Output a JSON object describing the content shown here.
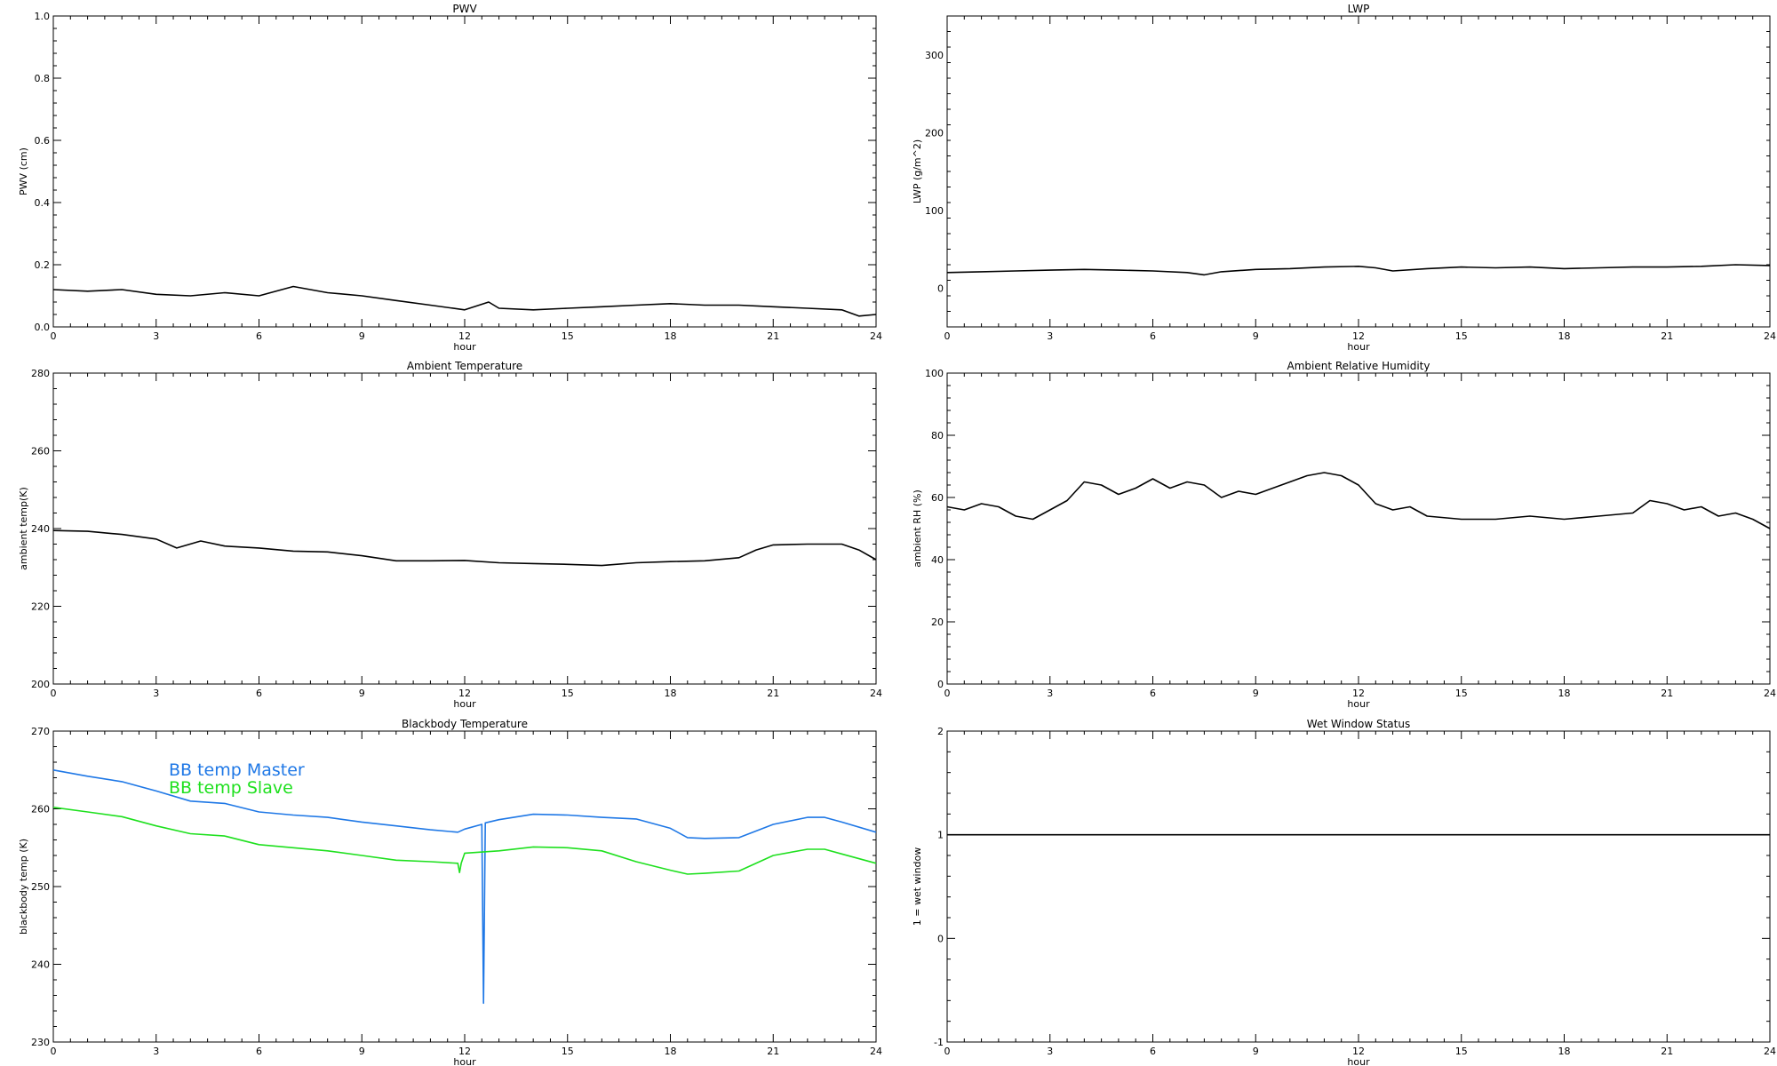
{
  "chart_data": [
    {
      "type": "line",
      "title": "PWV",
      "xlabel": "hour",
      "ylabel": "PWV (cm)",
      "xlim": [
        0,
        24
      ],
      "ylim": [
        0.0,
        1.0
      ],
      "xticks": [
        0,
        3,
        6,
        9,
        12,
        15,
        18,
        21,
        24
      ],
      "yticks": [
        0.0,
        0.2,
        0.4,
        0.6,
        0.8,
        1.0
      ],
      "ytick_labels": [
        "0.0",
        "0.2",
        "0.4",
        "0.6",
        "0.8",
        "1.0"
      ],
      "series": [
        {
          "color": "#000000",
          "x": [
            0,
            1,
            2,
            3,
            4,
            5,
            6,
            7,
            8,
            9,
            10,
            11,
            12,
            12.7,
            13,
            14,
            15,
            16,
            17,
            18,
            19,
            20,
            21,
            22,
            23,
            23.5,
            24
          ],
          "y": [
            0.12,
            0.115,
            0.12,
            0.105,
            0.1,
            0.11,
            0.1,
            0.13,
            0.11,
            0.1,
            0.085,
            0.07,
            0.055,
            0.08,
            0.06,
            0.055,
            0.06,
            0.065,
            0.07,
            0.075,
            0.07,
            0.07,
            0.065,
            0.06,
            0.055,
            0.035,
            0.04
          ]
        }
      ]
    },
    {
      "type": "line",
      "title": "LWP",
      "xlabel": "hour",
      "ylabel": "LWP (g/m^2)",
      "xlim": [
        0,
        24
      ],
      "ylim": [
        -50,
        350
      ],
      "xticks": [
        0,
        3,
        6,
        9,
        12,
        15,
        18,
        21,
        24
      ],
      "yticks": [
        0,
        100,
        200,
        300
      ],
      "ytick_labels": [
        "0",
        "100",
        "200",
        "300"
      ],
      "series": [
        {
          "color": "#000000",
          "x": [
            0,
            1,
            2,
            3,
            4,
            5,
            6,
            7,
            7.5,
            8,
            9,
            10,
            11,
            12,
            12.5,
            13,
            14,
            15,
            16,
            17,
            18,
            19,
            20,
            21,
            22,
            23,
            24
          ],
          "y": [
            20,
            21,
            22,
            23,
            24,
            23,
            22,
            20,
            17,
            21,
            24,
            25,
            27,
            28,
            26,
            22,
            25,
            27,
            26,
            27,
            25,
            26,
            27,
            27,
            28,
            30,
            29
          ]
        }
      ]
    },
    {
      "type": "line",
      "title": "Ambient Temperature",
      "xlabel": "hour",
      "ylabel": "ambient temp(K)",
      "xlim": [
        0,
        24
      ],
      "ylim": [
        200,
        280
      ],
      "xticks": [
        0,
        3,
        6,
        9,
        12,
        15,
        18,
        21,
        24
      ],
      "yticks": [
        200,
        220,
        240,
        260,
        280
      ],
      "ytick_labels": [
        "200",
        "220",
        "240",
        "260",
        "280"
      ],
      "series": [
        {
          "color": "#000000",
          "x": [
            0,
            1,
            2,
            3,
            3.6,
            4.3,
            5,
            6,
            7,
            8,
            9,
            10,
            11,
            12,
            13,
            14,
            15,
            16,
            17,
            18,
            19,
            20,
            20.5,
            21,
            22,
            23,
            23.5,
            24
          ],
          "y": [
            239.5,
            239.3,
            238.5,
            237.3,
            235.0,
            236.8,
            235.5,
            235.0,
            234.2,
            234.0,
            233.0,
            231.7,
            231.7,
            231.8,
            231.2,
            231.0,
            230.8,
            230.5,
            231.2,
            231.5,
            231.7,
            232.5,
            234.5,
            235.8,
            236.0,
            236.0,
            234.5,
            232.0
          ]
        }
      ]
    },
    {
      "type": "line",
      "title": "Ambient Relative Humidity",
      "xlabel": "hour",
      "ylabel": "ambient RH (%)",
      "xlim": [
        0,
        24
      ],
      "ylim": [
        0,
        100
      ],
      "xticks": [
        0,
        3,
        6,
        9,
        12,
        15,
        18,
        21,
        24
      ],
      "yticks": [
        0,
        20,
        40,
        60,
        80,
        100
      ],
      "ytick_labels": [
        "0",
        "20",
        "40",
        "60",
        "80",
        "100"
      ],
      "series": [
        {
          "color": "#000000",
          "x": [
            0,
            0.5,
            1,
            1.5,
            2,
            2.5,
            3,
            3.5,
            4,
            4.5,
            5,
            5.5,
            6,
            6.5,
            7,
            7.5,
            8,
            8.5,
            9,
            9.5,
            10,
            10.5,
            11,
            11.5,
            12,
            12.5,
            13,
            13.5,
            14,
            15,
            16,
            17,
            18,
            19,
            20,
            20.5,
            21,
            21.5,
            22,
            22.5,
            23,
            23.5,
            24
          ],
          "y": [
            57,
            56,
            58,
            57,
            54,
            53,
            56,
            59,
            65,
            64,
            61,
            63,
            66,
            63,
            65,
            64,
            60,
            62,
            61,
            63,
            65,
            67,
            68,
            67,
            64,
            58,
            56,
            57,
            54,
            53,
            53,
            54,
            53,
            54,
            55,
            59,
            58,
            56,
            57,
            54,
            55,
            53,
            50
          ]
        }
      ]
    },
    {
      "type": "line",
      "title": "Blackbody Temperature",
      "xlabel": "hour",
      "ylabel": "blackbody temp (K)",
      "xlim": [
        0,
        24
      ],
      "ylim": [
        230,
        270
      ],
      "xticks": [
        0,
        3,
        6,
        9,
        12,
        15,
        18,
        21,
        24
      ],
      "yticks": [
        230,
        240,
        250,
        260,
        270
      ],
      "ytick_labels": [
        "230",
        "240",
        "250",
        "260",
        "270"
      ],
      "legend": [
        "BB temp Master",
        "BB temp Slave"
      ],
      "series": [
        {
          "name": "BB temp Master",
          "color": "#1f78e6",
          "x": [
            0,
            1,
            2,
            3,
            4,
            5,
            6,
            7,
            8,
            9,
            10,
            11,
            11.8,
            12,
            12.5,
            12.55,
            12.6,
            13,
            14,
            15,
            16,
            17,
            18,
            18.5,
            19,
            20,
            21,
            22,
            22.5,
            23,
            24
          ],
          "y": [
            265,
            264.2,
            263.5,
            262.3,
            261.0,
            260.7,
            259.6,
            259.2,
            258.9,
            258.3,
            257.8,
            257.3,
            257.0,
            257.4,
            258.0,
            235,
            258.2,
            258.6,
            259.3,
            259.2,
            258.9,
            258.7,
            257.5,
            256.3,
            256.2,
            256.3,
            258.0,
            258.9,
            258.9,
            258.3,
            257.0
          ]
        },
        {
          "name": "BB temp Slave",
          "color": "#1ee01e",
          "x": [
            0,
            1,
            2,
            3,
            4,
            5,
            6,
            7,
            8,
            9,
            10,
            11,
            11.8,
            11.85,
            11.9,
            12,
            13,
            14,
            15,
            16,
            17,
            18,
            18.5,
            19,
            20,
            21,
            22,
            22.5,
            23,
            24
          ],
          "y": [
            260.2,
            259.6,
            259.0,
            257.8,
            256.8,
            256.5,
            255.4,
            255.0,
            254.6,
            254.0,
            253.4,
            253.2,
            253.0,
            251.8,
            253.0,
            254.3,
            254.6,
            255.1,
            255.0,
            254.6,
            253.2,
            252.1,
            251.6,
            251.7,
            252.0,
            254.0,
            254.8,
            254.8,
            254.2,
            253.0
          ]
        }
      ]
    },
    {
      "type": "line",
      "title": "Wet Window Status",
      "xlabel": "hour",
      "ylabel": "1 = wet window",
      "xlim": [
        0,
        24
      ],
      "ylim": [
        -1,
        2
      ],
      "xticks": [
        0,
        3,
        6,
        9,
        12,
        15,
        18,
        21,
        24
      ],
      "yticks": [
        -1,
        0,
        1,
        2
      ],
      "ytick_labels": [
        "-1",
        "0",
        "1",
        "2"
      ],
      "series": [
        {
          "color": "#000000",
          "x": [
            0,
            24
          ],
          "y": [
            1,
            1
          ]
        }
      ]
    }
  ]
}
